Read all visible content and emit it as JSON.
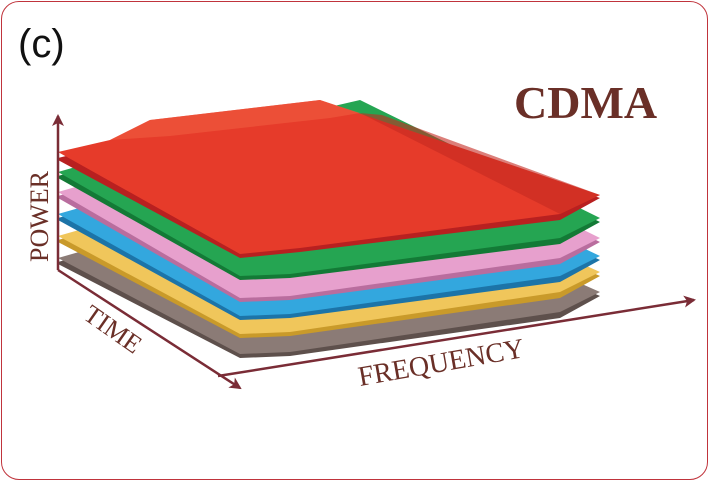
{
  "panel_label": "(c)",
  "title": "CDMA",
  "axes": {
    "power": "POWER",
    "time": "TIME",
    "frequency": "FREQUENCY"
  },
  "colors": {
    "frame": "#c0343c",
    "axis": "#7a2c36",
    "title": "#6a2f27",
    "layers": [
      "#7a6a66",
      "#e3b84a",
      "#2b9bd1",
      "#d98bbf",
      "#1f9a48",
      "#e83d2c"
    ]
  }
}
